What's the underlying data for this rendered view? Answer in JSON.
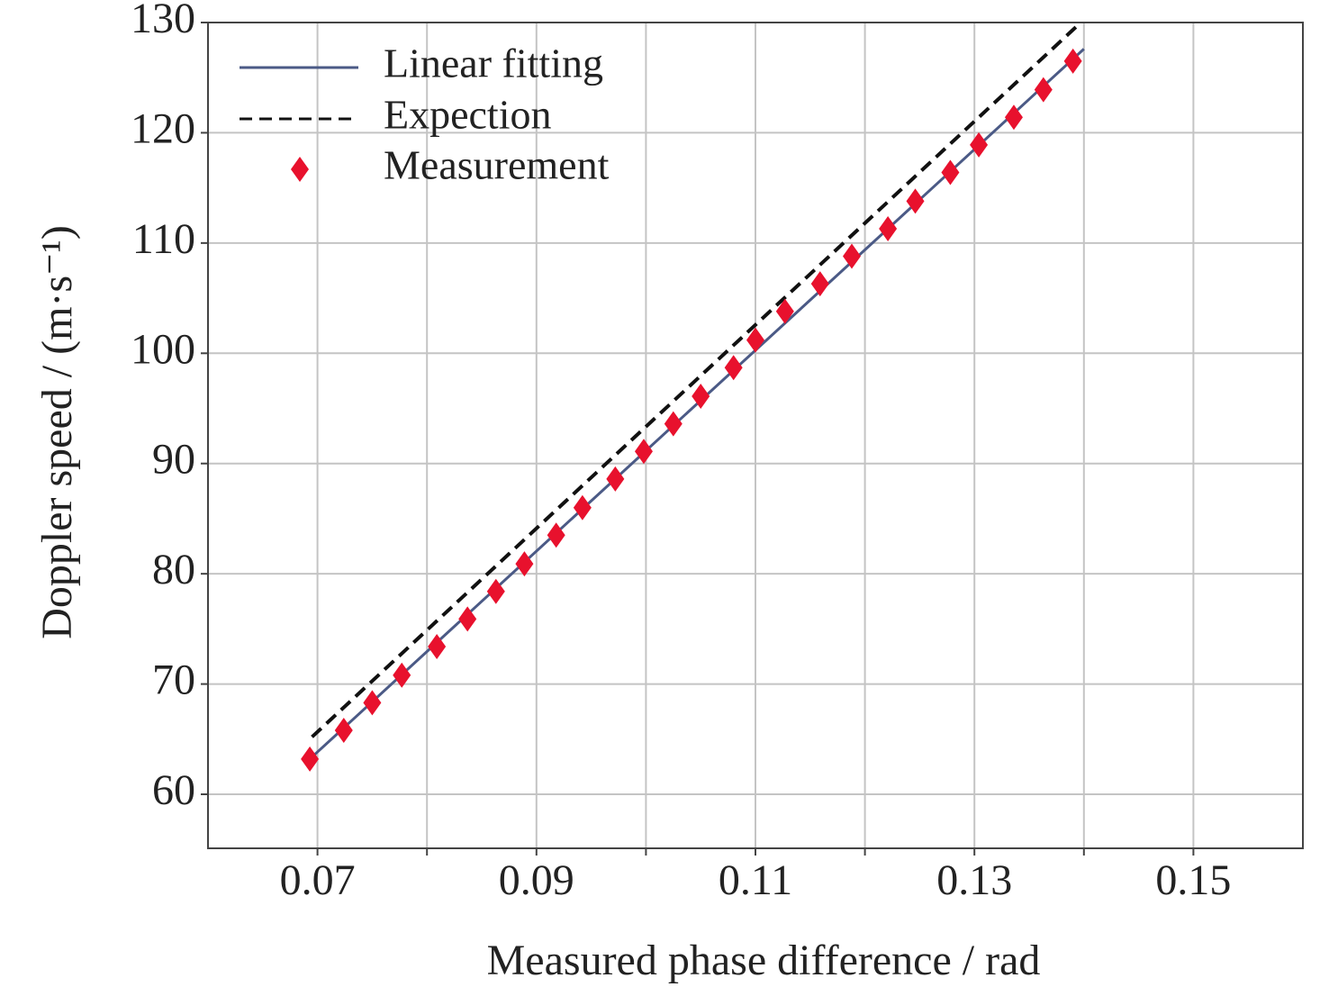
{
  "chart_data": {
    "type": "line",
    "xlabel": "Measured phase difference / rad",
    "ylabel": "Doppler speed / (m·s⁻¹)",
    "xlim": [
      0.06,
      0.16
    ],
    "ylim": [
      55.1,
      130
    ],
    "xticks": [
      0.07,
      0.09,
      0.11,
      0.13,
      0.15
    ],
    "xminorticks": [
      0.08,
      0.1,
      0.12,
      0.14
    ],
    "yticks": [
      60,
      70,
      80,
      90,
      100,
      110,
      120,
      130
    ],
    "grid": true,
    "legend": "upper-left",
    "series": [
      {
        "name": "Linear fitting",
        "color": "#4b5a86",
        "style": "solid",
        "x": [
          0.0693,
          0.14
        ],
        "values": [
          63.2,
          127.6
        ]
      },
      {
        "name": "Expection",
        "color": "#111111",
        "style": "dashed",
        "x": [
          0.0695,
          0.1395
        ],
        "values": [
          65.2,
          129.8
        ]
      },
      {
        "name": "Measurement",
        "color": "#e8112d",
        "style": "diamond",
        "x": [
          0.0693,
          0.0724,
          0.075,
          0.0777,
          0.0809,
          0.0837,
          0.0863,
          0.0889,
          0.0918,
          0.0942,
          0.0972,
          0.0998,
          0.1025,
          0.105,
          0.108,
          0.11,
          0.1127,
          0.1159,
          0.1188,
          0.1221,
          0.1246,
          0.1278,
          0.1304,
          0.1336,
          0.1363,
          0.139
        ],
        "values": [
          63.2,
          65.8,
          68.3,
          70.8,
          73.4,
          75.9,
          78.4,
          80.9,
          83.5,
          86.0,
          88.6,
          91.1,
          93.6,
          96.1,
          98.7,
          101.2,
          103.8,
          106.3,
          108.8,
          111.3,
          113.8,
          116.4,
          118.9,
          121.4,
          123.9,
          126.5
        ]
      }
    ]
  }
}
